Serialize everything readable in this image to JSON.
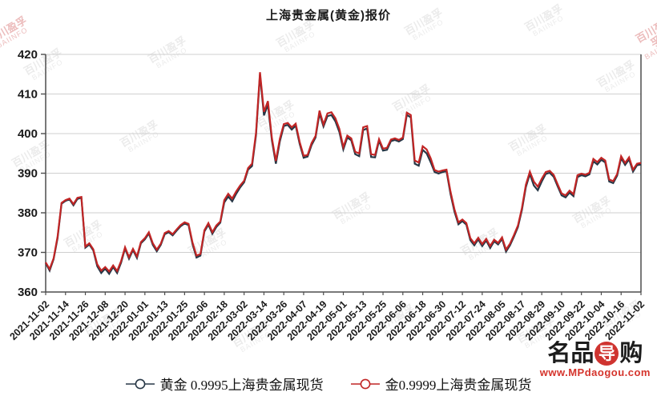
{
  "title": "上海贵金属(黄金)报价",
  "watermark": {
    "cn": "百川盈孚",
    "en": "BAIINFO"
  },
  "logo": {
    "left": "名品",
    "mid": "导",
    "right": "购",
    "url": "www.MPdaogou.com"
  },
  "colors": {
    "series_dark": "#273746",
    "series_red": "#c12525",
    "grid": "#cfcfcf",
    "axis": "#4d4d4d",
    "text": "#1a1a1a",
    "logo_red": "#cf3430"
  },
  "chart_data": {
    "type": "line",
    "title": "上海贵金属(黄金)报价",
    "xlabel": "",
    "ylabel": "",
    "ylim": [
      360,
      420
    ],
    "y_ticks": [
      360,
      370,
      380,
      390,
      400,
      410,
      420
    ],
    "grid": "horizontal",
    "legend_position": "bottom",
    "x_tick_labels": [
      "2021-11-02",
      "2021-11-14",
      "2021-11-26",
      "2021-12-08",
      "2021-12-20",
      "2022-01-01",
      "2022-01-13",
      "2022-01-25",
      "2022-02-06",
      "2022-02-18",
      "2022-03-02",
      "2022-03-14",
      "2022-03-26",
      "2022-04-07",
      "2022-04-19",
      "2022-05-01",
      "2022-05-13",
      "2022-05-25",
      "2022-06-06",
      "2022-06-18",
      "2022-06-30",
      "2022-07-12",
      "2022-07-24",
      "2022-08-05",
      "2022-08-17",
      "2022-08-29",
      "2022-09-10",
      "2022-09-22",
      "2022-10-04",
      "2022-10-16",
      "2022-11-02"
    ],
    "series": [
      {
        "name": "黄金 0.9995上海贵金属现货",
        "color": "#273746",
        "values": [
          367.3,
          365.4,
          368.3,
          373.6,
          382.3,
          383,
          383.4,
          381.9,
          383.5,
          383.8,
          371.2,
          372,
          370.5,
          366.5,
          364.8,
          365.9,
          364.6,
          366.3,
          364.8,
          367.4,
          371,
          368.4,
          370.6,
          368.6,
          372.3,
          373.3,
          374.8,
          371.9,
          370.3,
          371.9,
          374.6,
          375.1,
          374.3,
          375.5,
          376.6,
          377.3,
          376.9,
          372.1,
          368.7,
          369.2,
          375.3,
          377,
          374.7,
          376.4,
          377.5,
          382.6,
          384.1,
          382.9,
          384.8,
          386.4,
          387.7,
          390.9,
          391.8,
          399.6,
          414.9,
          404.6,
          407.3,
          398.3,
          392.4,
          398,
          401.9,
          402.2,
          401,
          402,
          397.4,
          393.9,
          394.2,
          397.1,
          399,
          405.1,
          401.8,
          404.4,
          404.7,
          403.1,
          400.4,
          396,
          399,
          398.3,
          394.8,
          394.3,
          400.9,
          401.3,
          394.1,
          394,
          398.2,
          395.7,
          395.9,
          398.1,
          398.4,
          398,
          398.6,
          404.7,
          404.1,
          392.4,
          391.9,
          395.9,
          395,
          392.8,
          390.3,
          389.9,
          390.3,
          390.5,
          384.8,
          380.3,
          377.1,
          377.9,
          377,
          373.1,
          371.8,
          373.3,
          371.6,
          373,
          371.1,
          372.8,
          372,
          373.4,
          370.2,
          371.8,
          374,
          376.4,
          380.7,
          386.5,
          389.8,
          386.9,
          385.7,
          387.9,
          389.8,
          390.1,
          389.1,
          386.7,
          384.4,
          383.9,
          385.1,
          384.2,
          389,
          389.5,
          389.2,
          389.7,
          393,
          392.2,
          393.4,
          392.7,
          387.9,
          387.5,
          389.4,
          393.8,
          392.1,
          393.5,
          390.4,
          392,
          392.2
        ]
      },
      {
        "name": "金0.9999上海贵金属现货",
        "color": "#c12525",
        "values": [
          367.5,
          365.8,
          368.5,
          374,
          382.5,
          383.2,
          383.6,
          382.2,
          383.8,
          384,
          371.5,
          372.3,
          370.8,
          367,
          365.4,
          366.3,
          365.2,
          366.7,
          365.3,
          367.8,
          371.3,
          368.8,
          370.9,
          369,
          372.6,
          373.6,
          375.1,
          372.3,
          370.7,
          372.2,
          374.9,
          375.4,
          374.6,
          375.8,
          376.9,
          377.6,
          377.2,
          372.5,
          369.2,
          369.6,
          375.6,
          377.4,
          375.1,
          376.8,
          377.8,
          383.2,
          384.8,
          383.6,
          385.4,
          386.9,
          388.1,
          391.3,
          392.4,
          400.2,
          415.5,
          405.5,
          408.2,
          398.9,
          393.1,
          398.7,
          402.4,
          402.7,
          401.6,
          402.5,
          397.9,
          394.4,
          394.6,
          397.6,
          399.4,
          405.8,
          402.3,
          405.1,
          405.4,
          403.9,
          401.2,
          396.6,
          399.5,
          398.8,
          395.4,
          395,
          401.6,
          401.9,
          394.8,
          394.6,
          398.6,
          396.2,
          396.4,
          398.5,
          398.8,
          398.4,
          399,
          405.3,
          404.7,
          393.2,
          392.7,
          396.8,
          396,
          393.8,
          390.8,
          390.4,
          390.7,
          390.9,
          385.4,
          380.9,
          377.6,
          378.3,
          377.4,
          373.6,
          372.3,
          373.7,
          372.1,
          373.4,
          371.6,
          373.2,
          372.4,
          373.8,
          370.7,
          372.2,
          374.4,
          376.8,
          381.2,
          387.1,
          390.4,
          387.9,
          386.6,
          388.6,
          390.3,
          390.6,
          389.6,
          387.2,
          384.9,
          384.4,
          385.6,
          384.7,
          389.5,
          389.9,
          389.6,
          390.1,
          393.6,
          392.8,
          393.9,
          393.2,
          388.4,
          388,
          389.8,
          394.3,
          392.6,
          394,
          390.9,
          392.4,
          392.6
        ]
      }
    ]
  }
}
